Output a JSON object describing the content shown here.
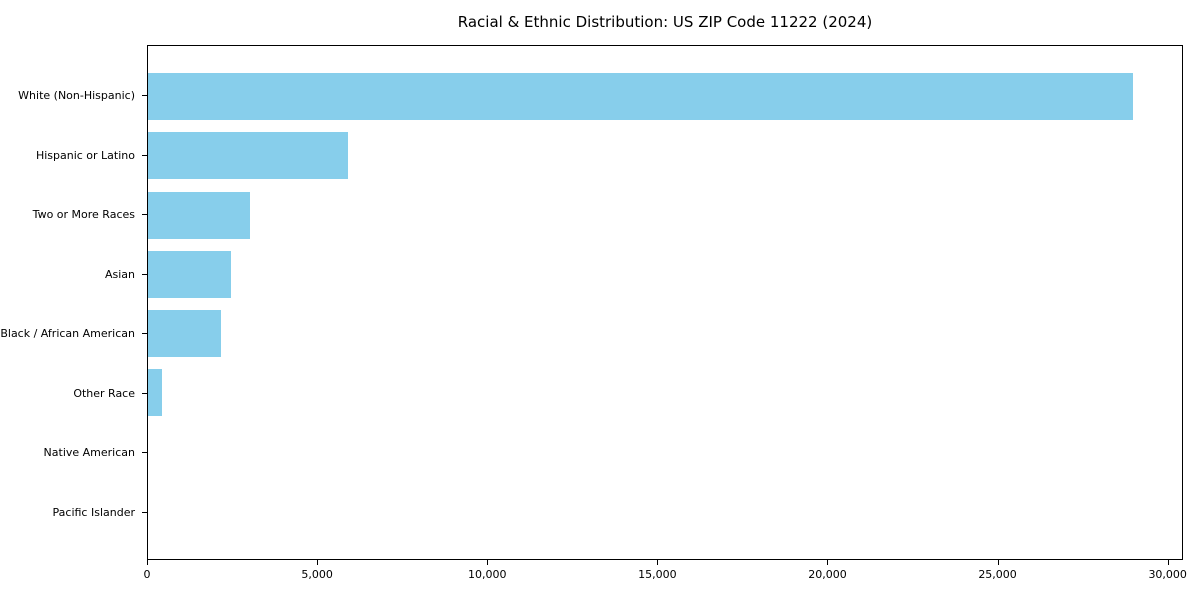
{
  "title": "Racial & Ethnic Distribution: US ZIP Code 11222 (2024)",
  "colors": {
    "bar": "#87CEEB",
    "axis": "#000000",
    "text": "#000000",
    "background": "#FFFFFF"
  },
  "chart_data": {
    "type": "bar",
    "orientation": "horizontal",
    "title": "Racial & Ethnic Distribution: US ZIP Code 11222 (2024)",
    "categories": [
      "White (Non-Hispanic)",
      "Hispanic or Latino",
      "Two or More Races",
      "Asian",
      "Black / African American",
      "Other Race",
      "Native American",
      "Pacific Islander"
    ],
    "values": [
      29000,
      5900,
      3000,
      2450,
      2150,
      400,
      0,
      0
    ],
    "bar_color": "#87CEEB",
    "xlabel": "",
    "ylabel": "",
    "xlim": [
      0,
      30450
    ],
    "x_ticks": [
      0,
      5000,
      10000,
      15000,
      20000,
      25000,
      30000
    ],
    "x_tick_labels": [
      "0",
      "5,000",
      "10,000",
      "15,000",
      "20,000",
      "25,000",
      "30,000"
    ],
    "grid": false,
    "legend": null,
    "frame": "full-box",
    "largest_category": "White (Non-Hispanic)",
    "sorted": "descending"
  }
}
